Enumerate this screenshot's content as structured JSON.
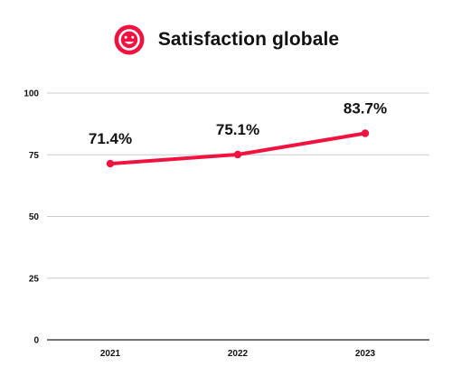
{
  "header": {
    "title": "Satisfaction globale",
    "icon": "smiley-face-icon"
  },
  "colors": {
    "accent": "#f0133f",
    "grid": "#cccccc",
    "axis": "#222222",
    "text": "#111111"
  },
  "chart_data": {
    "type": "line",
    "title": "Satisfaction globale",
    "xlabel": "",
    "ylabel": "",
    "categories": [
      "2021",
      "2022",
      "2023"
    ],
    "series": [
      {
        "values": [
          71.4,
          75.1,
          83.7
        ],
        "labels": [
          "71.4%",
          "75.1%",
          "83.7%"
        ]
      }
    ],
    "ylim": [
      0,
      100
    ],
    "yticks": [
      0,
      25,
      50,
      75,
      100
    ],
    "grid": true,
    "legend": "none"
  }
}
